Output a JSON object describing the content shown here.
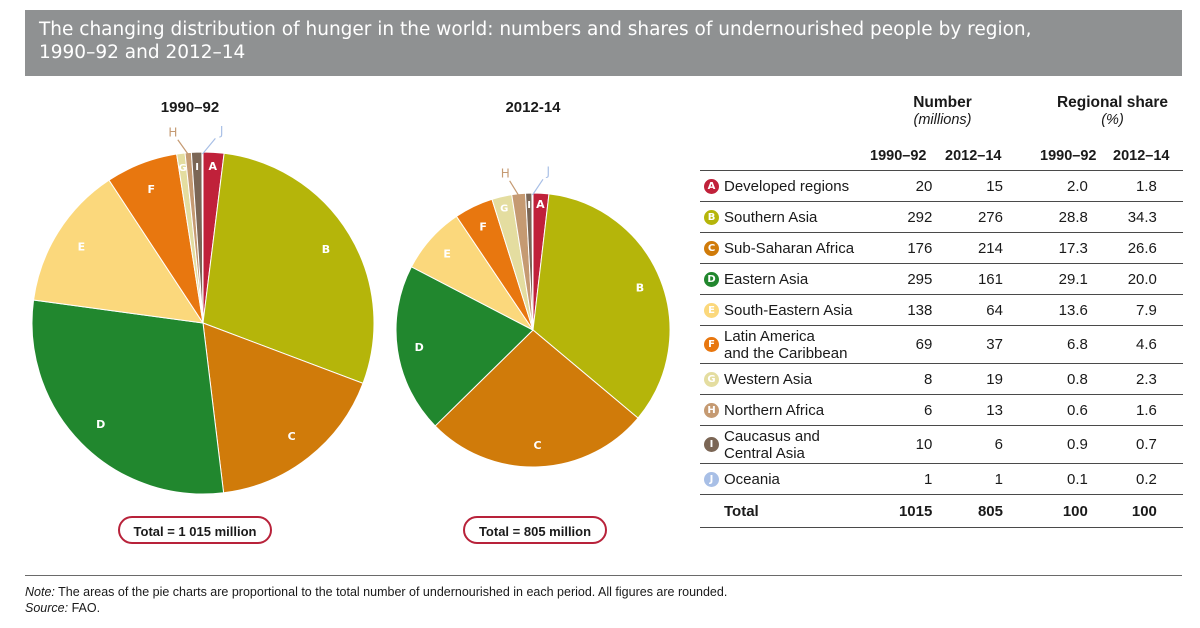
{
  "title": {
    "line1": "The changing distribution of hunger in the world: numbers and shares of undernourished people by region,",
    "line2": "1990–92 and 2012–14"
  },
  "colors": {
    "A": "#c0213a",
    "B": "#b5b50a",
    "C": "#d07b0a",
    "D": "#21872e",
    "E": "#fbd87c",
    "F": "#e8770f",
    "G": "#e4dda0",
    "H": "#c59a72",
    "I": "#7b6655",
    "J": "#a8bfe6"
  },
  "chart_data": [
    {
      "type": "pie",
      "title": "1990–92",
      "total_label": "Total = 1 015 million",
      "slices": [
        {
          "label": "A",
          "value": 20
        },
        {
          "label": "B",
          "value": 292
        },
        {
          "label": "C",
          "value": 176
        },
        {
          "label": "D",
          "value": 295
        },
        {
          "label": "E",
          "value": 138
        },
        {
          "label": "F",
          "value": 69
        },
        {
          "label": "G",
          "value": 8
        },
        {
          "label": "H",
          "value": 6
        },
        {
          "label": "I",
          "value": 10
        },
        {
          "label": "J",
          "value": 1
        }
      ]
    },
    {
      "type": "pie",
      "title": "2012-14",
      "total_label": "Total = 805 million",
      "slices": [
        {
          "label": "A",
          "value": 15
        },
        {
          "label": "B",
          "value": 276
        },
        {
          "label": "C",
          "value": 214
        },
        {
          "label": "D",
          "value": 161
        },
        {
          "label": "E",
          "value": 64
        },
        {
          "label": "F",
          "value": 37
        },
        {
          "label": "G",
          "value": 19
        },
        {
          "label": "H",
          "value": 13
        },
        {
          "label": "I",
          "value": 6
        },
        {
          "label": "J",
          "value": 1
        }
      ]
    }
  ],
  "table": {
    "number_header": "Number",
    "number_unit": "(millions)",
    "share_header": "Regional share",
    "share_unit": "(%)",
    "col_headers": [
      "1990–92",
      "2012–14",
      "1990–92",
      "2012–14"
    ],
    "rows": [
      {
        "letter": "A",
        "region": "Developed regions",
        "n1": "20",
        "n2": "15",
        "s1": "2.0",
        "s2": "1.8"
      },
      {
        "letter": "B",
        "region": "Southern Asia",
        "n1": "292",
        "n2": "276",
        "s1": "28.8",
        "s2": "34.3"
      },
      {
        "letter": "C",
        "region": "Sub-Saharan Africa",
        "n1": "176",
        "n2": "214",
        "s1": "17.3",
        "s2": "26.6"
      },
      {
        "letter": "D",
        "region": "Eastern Asia",
        "n1": "295",
        "n2": "161",
        "s1": "29.1",
        "s2": "20.0"
      },
      {
        "letter": "E",
        "region": "South-Eastern Asia",
        "n1": "138",
        "n2": "64",
        "s1": "13.6",
        "s2": "7.9"
      },
      {
        "letter": "F",
        "region": "Latin America\nand the Caribbean",
        "n1": "69",
        "n2": "37",
        "s1": "6.8",
        "s2": "4.6"
      },
      {
        "letter": "G",
        "region": "Western Asia",
        "n1": "8",
        "n2": "19",
        "s1": "0.8",
        "s2": "2.3"
      },
      {
        "letter": "H",
        "region": "Northern Africa",
        "n1": "6",
        "n2": "13",
        "s1": "0.6",
        "s2": "1.6"
      },
      {
        "letter": "I",
        "region": "Caucasus and\nCentral Asia",
        "n1": "10",
        "n2": "6",
        "s1": "0.9",
        "s2": "0.7"
      },
      {
        "letter": "J",
        "region": "Oceania",
        "n1": "1",
        "n2": "1",
        "s1": "0.1",
        "s2": "0.2"
      }
    ],
    "total": {
      "region": "Total",
      "n1": "1015",
      "n2": "805",
      "s1": "100",
      "s2": "100"
    }
  },
  "note": {
    "note_label": "Note:",
    "note_text": " The areas of the pie charts are proportional to the total number of undernourished in each period. All figures are rounded.",
    "source_label": "Source:",
    "source_text": " FAO."
  }
}
